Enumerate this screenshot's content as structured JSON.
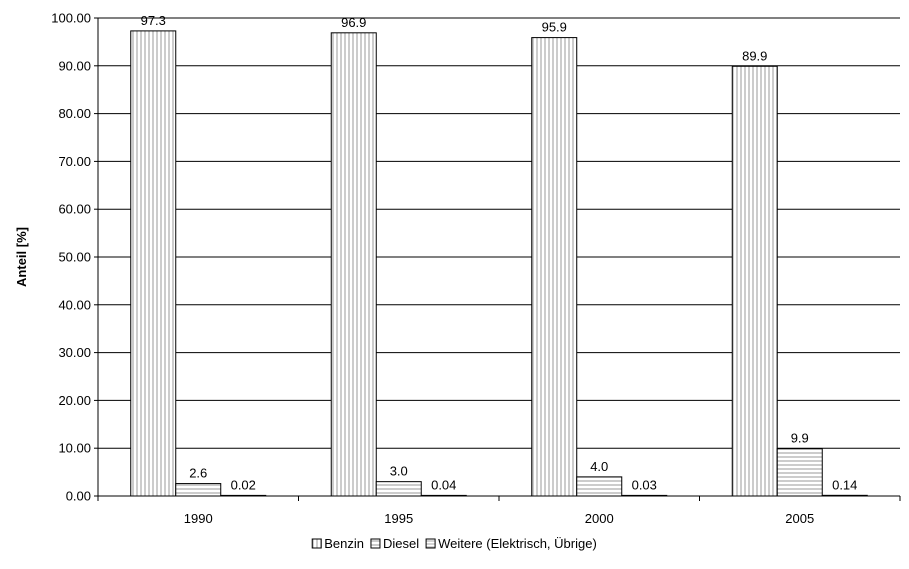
{
  "chart_data": {
    "type": "bar",
    "categories": [
      "1990",
      "1995",
      "2000",
      "2005"
    ],
    "series": [
      {
        "name": "Benzin",
        "values": [
          97.3,
          96.9,
          95.9,
          89.9
        ],
        "labels": [
          "97.3",
          "96.9",
          "95.9",
          "89.9"
        ],
        "pattern": "vertical-stripes"
      },
      {
        "name": "Diesel",
        "values": [
          2.6,
          3.0,
          4.0,
          9.9
        ],
        "labels": [
          "2.6",
          "3.0",
          "4.0",
          "9.9"
        ],
        "pattern": "horizontal-stripes"
      },
      {
        "name": "Weitere (Elektrisch, Übrige)",
        "values": [
          0.02,
          0.04,
          0.03,
          0.14
        ],
        "labels": [
          "0.02",
          "0.04",
          "0.03",
          "0.14"
        ],
        "pattern": "horizontal-stripes-fine"
      }
    ],
    "ylabel": "Anteil [%]",
    "xlabel": "",
    "ylim": [
      0,
      100
    ],
    "yticks": [
      "0.00",
      "10.00",
      "20.00",
      "30.00",
      "40.00",
      "50.00",
      "60.00",
      "70.00",
      "80.00",
      "90.00",
      "100.00"
    ],
    "grid": true,
    "legend": "bottom",
    "colors": {
      "stroke": "#000000",
      "stripe": "#c8c8c8",
      "fill": "#ffffff"
    }
  }
}
